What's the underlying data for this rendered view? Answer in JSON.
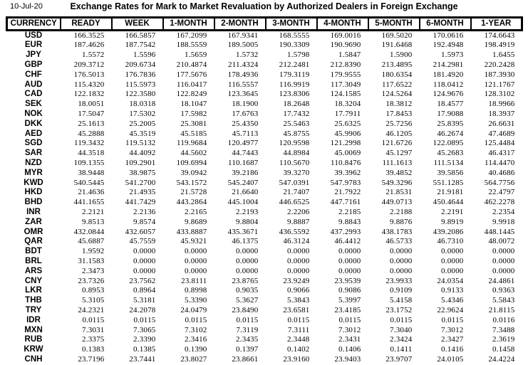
{
  "meta": {
    "date": "10-Jul-20",
    "title": "Exchange Rates for Mark to Market Revaluation by Authorized Dealers in Foreign Exchange"
  },
  "table": {
    "columns": [
      "CURRENCY",
      "READY",
      "WEEK",
      "1-MONTH",
      "2-MONTH",
      "3-MONTH",
      "4-MONTH",
      "5-MONTH",
      "6-MONTH",
      "1-YEAR"
    ],
    "rows": [
      {
        "currency": "USD",
        "values": [
          "166.3525",
          "166.5857",
          "167.2099",
          "167.9341",
          "168.5555",
          "169.0016",
          "169.5020",
          "170.0616",
          "174.6643"
        ]
      },
      {
        "currency": "EUR",
        "values": [
          "187.4626",
          "187.7542",
          "188.5559",
          "189.5005",
          "190.3309",
          "190.9690",
          "191.6468",
          "192.4948",
          "198.4919"
        ]
      },
      {
        "currency": "JPY",
        "values": [
          "1.5572",
          "1.5596",
          "1.5659",
          "1.5732",
          "1.5798",
          "1.5847",
          "1.5900",
          "1.5973",
          "1.6455"
        ]
      },
      {
        "currency": "GBP",
        "values": [
          "209.3712",
          "209.6734",
          "210.4874",
          "211.4324",
          "212.2481",
          "212.8390",
          "213.4895",
          "214.2981",
          "220.2428"
        ]
      },
      {
        "currency": "CHF",
        "values": [
          "176.5013",
          "176.7836",
          "177.5676",
          "178.4936",
          "179.3119",
          "179.9555",
          "180.6354",
          "181.4920",
          "187.3930"
        ]
      },
      {
        "currency": "AUD",
        "values": [
          "115.4320",
          "115.5973",
          "116.0417",
          "116.5557",
          "116.9919",
          "117.3049",
          "117.6522",
          "118.0412",
          "121.1767"
        ]
      },
      {
        "currency": "CAD",
        "values": [
          "122.1832",
          "122.3580",
          "122.8249",
          "123.3645",
          "123.8306",
          "124.1585",
          "124.5264",
          "124.9676",
          "128.3102"
        ]
      },
      {
        "currency": "SEK",
        "values": [
          "18.0051",
          "18.0318",
          "18.1047",
          "18.1900",
          "18.2648",
          "18.3204",
          "18.3812",
          "18.4577",
          "18.9966"
        ]
      },
      {
        "currency": "NOK",
        "values": [
          "17.5047",
          "17.5302",
          "17.5982",
          "17.6763",
          "17.7432",
          "17.7911",
          "17.8453",
          "17.9088",
          "18.3937"
        ]
      },
      {
        "currency": "DKK",
        "values": [
          "25.1613",
          "25.2005",
          "25.3081",
          "25.4350",
          "25.5463",
          "25.6325",
          "25.7256",
          "25.8395",
          "26.6631"
        ]
      },
      {
        "currency": "AED",
        "values": [
          "45.2888",
          "45.3519",
          "45.5185",
          "45.7113",
          "45.8755",
          "45.9906",
          "46.1205",
          "46.2674",
          "47.4689"
        ]
      },
      {
        "currency": "SGD",
        "values": [
          "119.3432",
          "119.5132",
          "119.9684",
          "120.4977",
          "120.9598",
          "121.2998",
          "121.6726",
          "122.0895",
          "125.4484"
        ]
      },
      {
        "currency": "SAR",
        "values": [
          "44.3518",
          "44.4092",
          "44.5602",
          "44.7443",
          "44.8984",
          "45.0069",
          "45.1297",
          "45.2683",
          "46.4317"
        ]
      },
      {
        "currency": "NZD",
        "values": [
          "109.1355",
          "109.2901",
          "109.6994",
          "110.1687",
          "110.5670",
          "110.8476",
          "111.1613",
          "111.5134",
          "114.4470"
        ]
      },
      {
        "currency": "MYR",
        "values": [
          "38.9448",
          "38.9875",
          "39.0942",
          "39.2186",
          "39.3270",
          "39.3962",
          "39.4852",
          "39.5856",
          "40.4686"
        ]
      },
      {
        "currency": "KWD",
        "values": [
          "540.5445",
          "541.2700",
          "543.1572",
          "545.2407",
          "547.0391",
          "547.9783",
          "549.3296",
          "551.1285",
          "564.7756"
        ]
      },
      {
        "currency": "HKD",
        "values": [
          "21.4636",
          "21.4935",
          "21.5728",
          "21.6640",
          "21.7407",
          "21.7922",
          "21.8531",
          "21.9181",
          "22.4797"
        ]
      },
      {
        "currency": "BHD",
        "values": [
          "441.1655",
          "441.7429",
          "443.2864",
          "445.1004",
          "446.6525",
          "447.7161",
          "449.0713",
          "450.4644",
          "462.2278"
        ]
      },
      {
        "currency": "INR",
        "values": [
          "2.2121",
          "2.2136",
          "2.2165",
          "2.2193",
          "2.2206",
          "2.2185",
          "2.2188",
          "2.2191",
          "2.2354"
        ]
      },
      {
        "currency": "ZAR",
        "values": [
          "9.8513",
          "9.8574",
          "9.8689",
          "9.8804",
          "9.8887",
          "9.8843",
          "9.8876",
          "9.8919",
          "9.9918"
        ]
      },
      {
        "currency": "OMR",
        "values": [
          "432.0844",
          "432.6057",
          "433.8887",
          "435.3671",
          "436.5592",
          "437.2993",
          "438.1783",
          "439.2086",
          "448.1445"
        ]
      },
      {
        "currency": "QAR",
        "values": [
          "45.6887",
          "45.7559",
          "45.9321",
          "46.1375",
          "46.3124",
          "46.4412",
          "46.5733",
          "46.7310",
          "48.0072"
        ]
      },
      {
        "currency": "BDT",
        "values": [
          "1.9592",
          "0.0000",
          "0.0000",
          "0.0000",
          "0.0000",
          "0.0000",
          "0.0000",
          "0.0000",
          "0.0000"
        ]
      },
      {
        "currency": "BRL",
        "values": [
          "31.1583",
          "0.0000",
          "0.0000",
          "0.0000",
          "0.0000",
          "0.0000",
          "0.0000",
          "0.0000",
          "0.0000"
        ]
      },
      {
        "currency": "ARS",
        "values": [
          "2.3473",
          "0.0000",
          "0.0000",
          "0.0000",
          "0.0000",
          "0.0000",
          "0.0000",
          "0.0000",
          "0.0000"
        ]
      },
      {
        "currency": "CNY",
        "values": [
          "23.7326",
          "23.7562",
          "23.8111",
          "23.8765",
          "23.9249",
          "23.9539",
          "23.9933",
          "24.0354",
          "24.4861"
        ]
      },
      {
        "currency": "LKR",
        "values": [
          "0.8953",
          "0.8964",
          "0.8998",
          "0.9035",
          "0.9066",
          "0.9086",
          "0.9109",
          "0.9133",
          "0.9363"
        ]
      },
      {
        "currency": "THB",
        "values": [
          "5.3105",
          "5.3181",
          "5.3390",
          "5.3627",
          "5.3843",
          "5.3997",
          "5.4158",
          "5.4346",
          "5.5843"
        ]
      },
      {
        "currency": "TRY",
        "values": [
          "24.2321",
          "24.2078",
          "24.0479",
          "23.8490",
          "23.6581",
          "23.4185",
          "23.1752",
          "22.9624",
          "21.8115"
        ]
      },
      {
        "currency": "IDR",
        "values": [
          "0.0115",
          "0.0115",
          "0.0115",
          "0.0115",
          "0.0115",
          "0.0115",
          "0.0115",
          "0.0115",
          "0.0116"
        ]
      },
      {
        "currency": "MXN",
        "values": [
          "7.3031",
          "7.3065",
          "7.3102",
          "7.3119",
          "7.3111",
          "7.3012",
          "7.3040",
          "7.3012",
          "7.3488"
        ]
      },
      {
        "currency": "RUB",
        "values": [
          "2.3375",
          "2.3390",
          "2.3416",
          "2.3435",
          "2.3448",
          "2.3431",
          "2.3424",
          "2.3427",
          "2.3619"
        ]
      },
      {
        "currency": "KRW",
        "values": [
          "0.1383",
          "0.1385",
          "0.1390",
          "0.1397",
          "0.1402",
          "0.1406",
          "0.1411",
          "0.1416",
          "0.1458"
        ]
      },
      {
        "currency": "CNH",
        "values": [
          "23.7196",
          "23.7441",
          "23.8027",
          "23.8661",
          "23.9160",
          "23.9403",
          "23.9707",
          "24.0105",
          "24.4224"
        ]
      }
    ]
  }
}
